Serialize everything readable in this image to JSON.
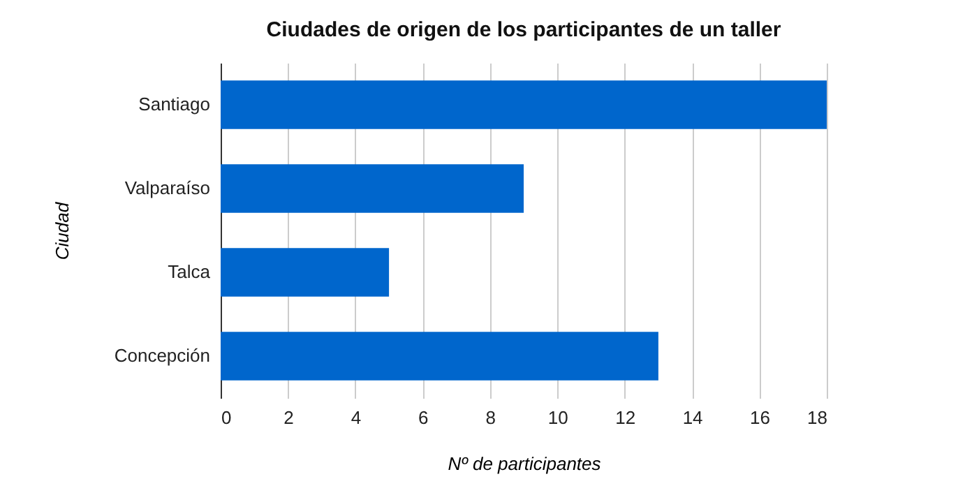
{
  "chart_data": {
    "type": "bar",
    "orientation": "horizontal",
    "title": "Ciudades de origen de los participantes de un taller",
    "xlabel": "Nº de participantes",
    "ylabel": "Ciudad",
    "categories": [
      "Santiago",
      "Valparaíso",
      "Talca",
      "Concepción"
    ],
    "values": [
      18,
      9,
      5,
      13
    ],
    "color": "#0066cc",
    "xlim": [
      0,
      18
    ],
    "xticks": [
      0,
      2,
      4,
      6,
      8,
      10,
      12,
      14,
      16,
      18
    ],
    "grid": "x"
  }
}
